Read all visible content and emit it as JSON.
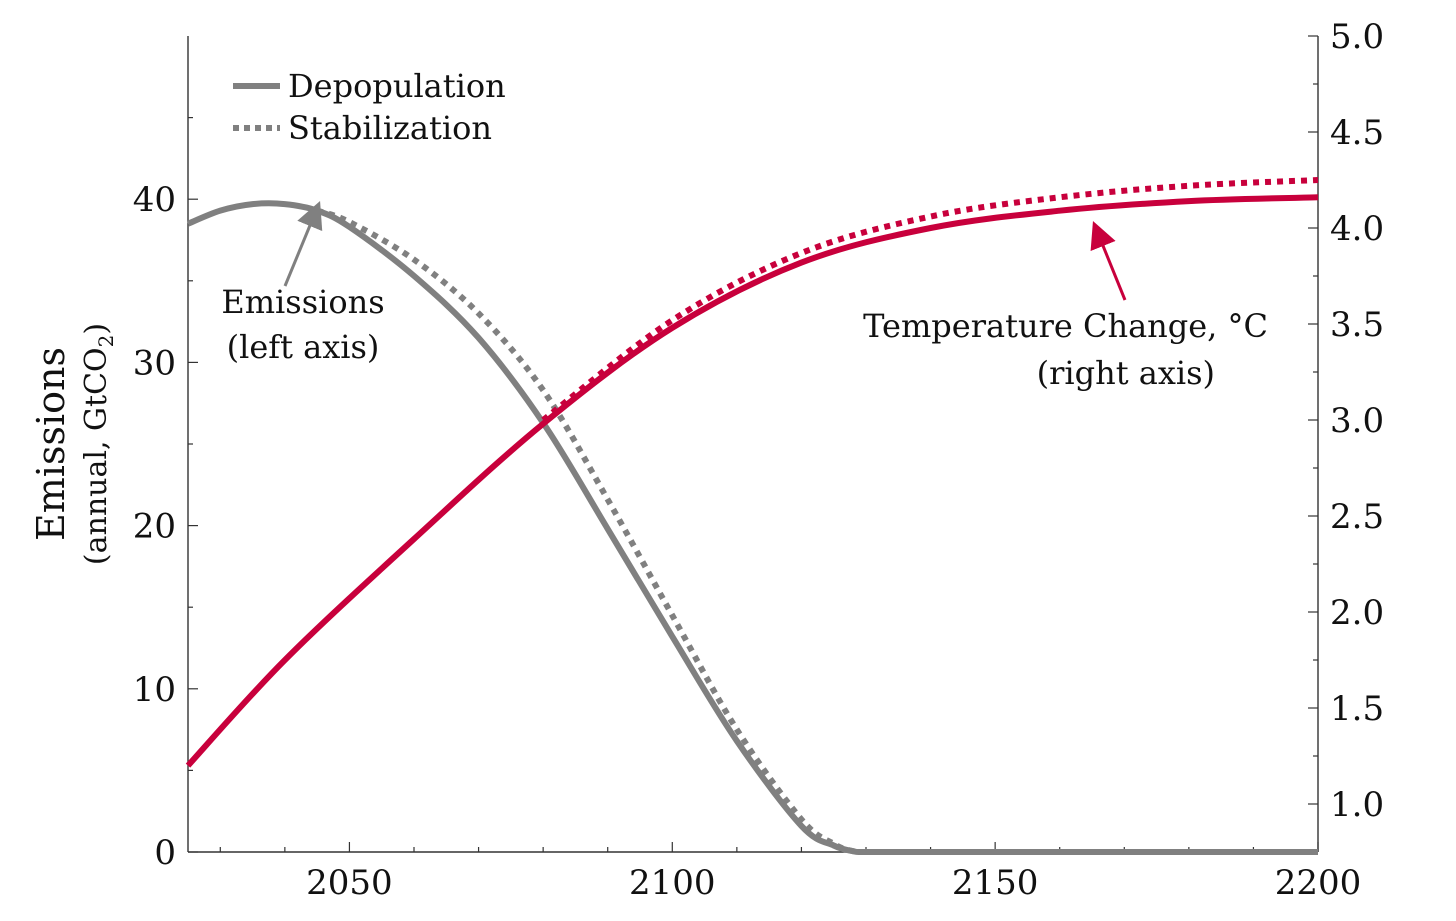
{
  "chart_data": {
    "type": "line",
    "xlabel": "",
    "ylabel": "Emissions",
    "ylabel_sub": "(annual, GtCO",
    "ylabel_sub_subscript": "2",
    "ylabel_sub_close": ")",
    "xlim": [
      2025,
      2200
    ],
    "ylim_left": [
      0,
      50
    ],
    "ylim_right": [
      0.75,
      5.0
    ],
    "x_ticks": [
      2050,
      2100,
      2150,
      2200
    ],
    "x_tick_labels": [
      "2050",
      "2100",
      "2150",
      "2200"
    ],
    "y_left_ticks": [
      0,
      10,
      20,
      30,
      40
    ],
    "y_left_tick_labels": [
      "0",
      "10",
      "20",
      "30",
      "40"
    ],
    "y_right_ticks": [
      1.0,
      1.5,
      2.0,
      2.5,
      3.0,
      3.5,
      4.0,
      4.5,
      5.0
    ],
    "y_right_tick_labels": [
      "1.0",
      "1.5",
      "2.0",
      "2.5",
      "3.0",
      "3.5",
      "4.0",
      "4.5",
      "5.0"
    ],
    "grid": false,
    "legend_position": "top-left",
    "legend": [
      {
        "label": "Depopulation",
        "style": "solid"
      },
      {
        "label": "Stabilization",
        "style": "dotted"
      }
    ],
    "colors": {
      "emissions": "#808080",
      "temperature": "#c8003c",
      "axis": "#333333"
    },
    "series": [
      {
        "name": "Depopulation",
        "quantity": "emissions",
        "axis": "left",
        "style": "solid",
        "x": [
          2025,
          2030,
          2035,
          2040,
          2045,
          2050,
          2060,
          2070,
          2080,
          2090,
          2100,
          2110,
          2120,
          2125,
          2128,
          2130,
          2140,
          2160,
          2180,
          2200
        ],
        "y": [
          38.5,
          39.3,
          39.7,
          39.7,
          39.3,
          38.3,
          35.3,
          31.5,
          26.3,
          19.8,
          13.2,
          6.8,
          1.6,
          0.4,
          0.05,
          0,
          0,
          0,
          0,
          0
        ]
      },
      {
        "name": "Stabilization",
        "quantity": "emissions",
        "axis": "left",
        "style": "dotted",
        "x": [
          2045,
          2050,
          2060,
          2070,
          2080,
          2090,
          2100,
          2110,
          2120,
          2125,
          2128,
          2130,
          2140,
          2160,
          2180,
          2200
        ],
        "y": [
          39.3,
          38.6,
          36.3,
          33.0,
          28.3,
          21.6,
          14.5,
          7.5,
          2.0,
          0.5,
          0.05,
          0,
          0,
          0,
          0,
          0
        ]
      },
      {
        "name": "Depopulation",
        "quantity": "temperature",
        "axis": "right",
        "style": "solid",
        "x": [
          2025,
          2040,
          2060,
          2080,
          2100,
          2120,
          2140,
          2160,
          2180,
          2200
        ],
        "y": [
          1.2,
          1.75,
          2.38,
          2.98,
          3.48,
          3.82,
          4.0,
          4.09,
          4.14,
          4.16
        ]
      },
      {
        "name": "Stabilization",
        "quantity": "temperature",
        "axis": "right",
        "style": "dotted",
        "x": [
          2080,
          2100,
          2120,
          2140,
          2160,
          2180,
          2200
        ],
        "y": [
          3.0,
          3.52,
          3.87,
          4.06,
          4.16,
          4.22,
          4.25
        ]
      }
    ],
    "annotations": [
      {
        "lines": [
          "Emissions",
          "(left axis)"
        ],
        "arrow_to": {
          "x": 2045,
          "y": 39.5,
          "axis": "left"
        },
        "color": "#808080"
      },
      {
        "lines": [
          "Temperature Change, °C",
          "(right axis)"
        ],
        "arrow_to": {
          "x": 2138,
          "y": 4.0,
          "axis": "right"
        },
        "color": "#c8003c"
      }
    ]
  }
}
